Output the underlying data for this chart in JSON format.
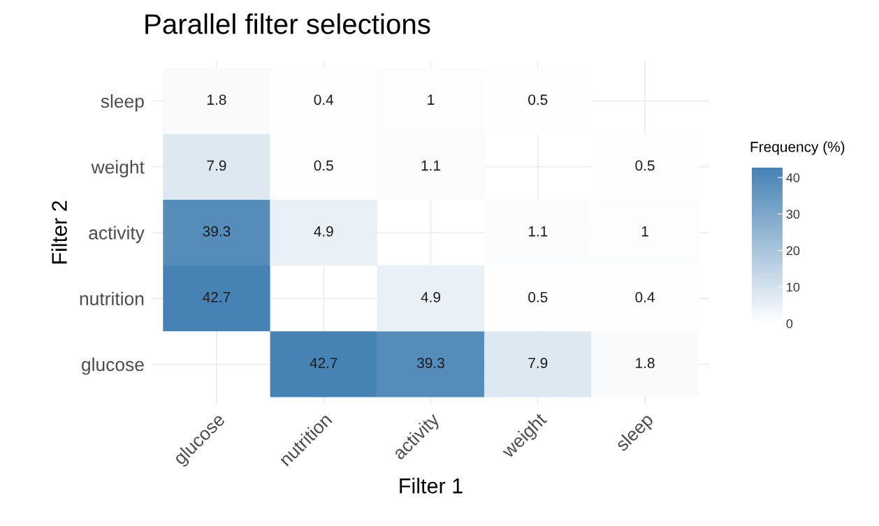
{
  "chart_data": {
    "type": "heatmap",
    "title": "Parallel filter selections",
    "xlabel": "Filter 1",
    "ylabel": "Filter 2",
    "clabel": "Frequency (%)",
    "categories": [
      "glucose",
      "nutrition",
      "activity",
      "weight",
      "sleep"
    ],
    "y_categories": [
      "sleep",
      "weight",
      "activity",
      "nutrition",
      "glucose"
    ],
    "cells": [
      [
        1.8,
        0.4,
        1,
        0.5,
        null
      ],
      [
        7.9,
        0.5,
        1.1,
        null,
        0.5
      ],
      [
        39.3,
        4.9,
        null,
        1.1,
        1
      ],
      [
        42.7,
        null,
        4.9,
        0.5,
        0.4
      ],
      [
        null,
        42.7,
        39.3,
        7.9,
        1.8
      ]
    ],
    "clim": [
      0,
      42.7
    ],
    "cticks": [
      0,
      10,
      20,
      30,
      40
    ],
    "data_labels": true,
    "grid": true
  }
}
